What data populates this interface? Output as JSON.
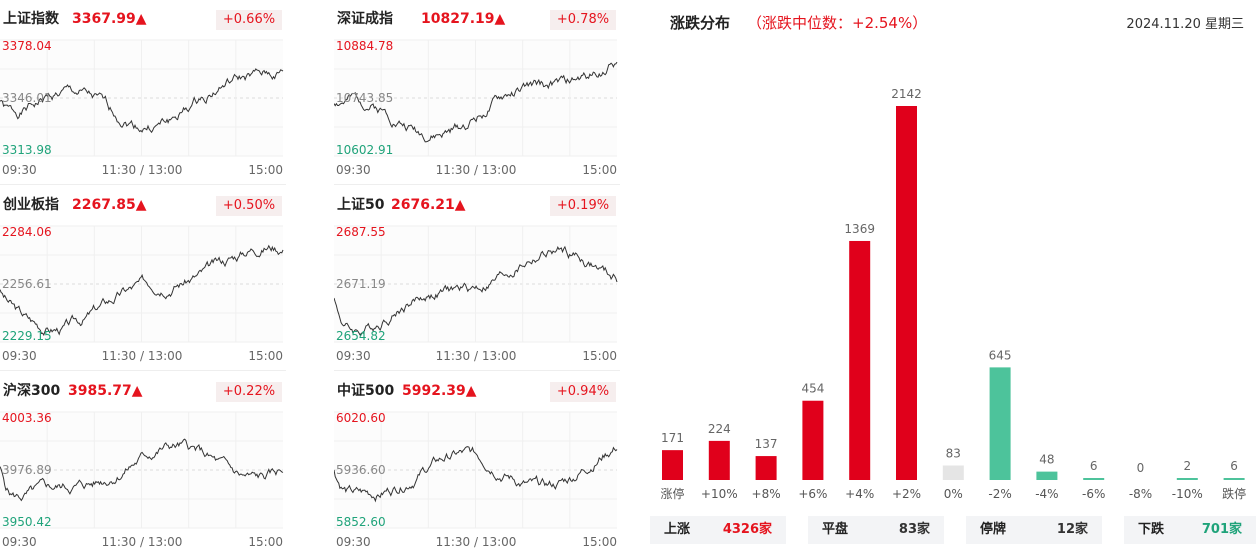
{
  "indices": [
    {
      "name": "上证指数",
      "value": "3367.99",
      "arrow": "▲",
      "change": "+0.66%",
      "high": "3378.04",
      "mid": "3346.01",
      "low": "3313.98",
      "seed": 1
    },
    {
      "name": "深证成指",
      "value": "10827.19",
      "arrow": "▲",
      "change": "+0.78%",
      "high": "10884.78",
      "mid": "10743.85",
      "low": "10602.91",
      "seed": 2
    },
    {
      "name": "创业板指",
      "value": "2267.85",
      "arrow": "▲",
      "change": "+0.50%",
      "high": "2284.06",
      "mid": "2256.61",
      "low": "2229.15",
      "seed": 3
    },
    {
      "name": "上证50",
      "value": "2676.21",
      "arrow": "▲",
      "change": "+0.19%",
      "high": "2687.55",
      "mid": "2671.19",
      "low": "2654.82",
      "seed": 4
    },
    {
      "name": "沪深300",
      "value": "3985.77",
      "arrow": "▲",
      "change": "+0.22%",
      "high": "4003.36",
      "mid": "3976.89",
      "low": "3950.42",
      "seed": 5
    },
    {
      "name": "中证500",
      "value": "5992.39",
      "arrow": "▲",
      "change": "+0.94%",
      "high": "6020.60",
      "mid": "5936.60",
      "low": "5852.60",
      "seed": 6
    }
  ],
  "time_axis": {
    "start": "09:30",
    "mid": "11:30 / 13:00",
    "end": "15:00"
  },
  "distribution": {
    "title": "涨跌分布",
    "median": "（涨跌中位数：+2.54%）",
    "date": "2024.11.20 星期三"
  },
  "chart_data": {
    "type": "bar",
    "categories": [
      "涨停",
      "+10%",
      "+8%",
      "+6%",
      "+4%",
      "+2%",
      "0%",
      "-2%",
      "-4%",
      "-6%",
      "-8%",
      "-10%",
      "跌停"
    ],
    "values": [
      171,
      224,
      137,
      454,
      1369,
      2142,
      83,
      645,
      48,
      6,
      0,
      2,
      6
    ],
    "colors": [
      "#e0001b",
      "#e0001b",
      "#e0001b",
      "#e0001b",
      "#e0001b",
      "#e0001b",
      "#e5e5e5",
      "#4dc39b",
      "#4dc39b",
      "#4dc39b",
      "#4dc39b",
      "#4dc39b",
      "#4dc39b"
    ],
    "ylim": [
      0,
      2142
    ]
  },
  "summary": [
    {
      "label": "上涨",
      "value": "4326家",
      "color": "#e5141e"
    },
    {
      "label": "平盘",
      "value": "83家",
      "color": "#333333"
    },
    {
      "label": "停牌",
      "value": "12家",
      "color": "#333333"
    },
    {
      "label": "下跌",
      "value": "701家",
      "color": "#1fa37a"
    }
  ]
}
